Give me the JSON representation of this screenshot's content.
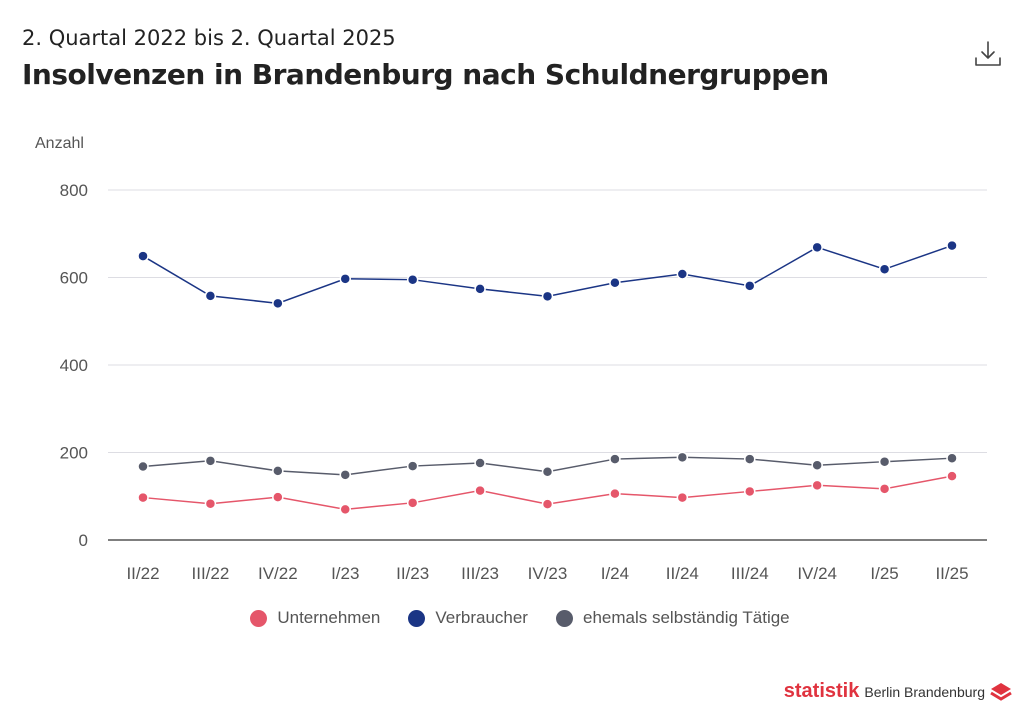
{
  "header": {
    "subtitle": "2. Quartal 2022 bis 2. Quartal 2025",
    "title": "Insolvenzen in Brandenburg nach Schuldnergruppen",
    "download_icon": "download-icon"
  },
  "chart_data": {
    "type": "line",
    "ylabel": "Anzahl",
    "ylim": [
      0,
      800
    ],
    "yticks": [
      0,
      200,
      400,
      600,
      800
    ],
    "grid": true,
    "legend_position": "bottom",
    "categories": [
      "II/22",
      "III/22",
      "IV/22",
      "I/23",
      "II/23",
      "III/23",
      "IV/23",
      "I/24",
      "II/24",
      "III/24",
      "IV/24",
      "I/25",
      "II/25"
    ],
    "series": [
      {
        "name": "Unternehmen",
        "color": "#e5566a",
        "values": [
          97,
          83,
          98,
          70,
          85,
          113,
          82,
          106,
          97,
          111,
          125,
          117,
          146
        ]
      },
      {
        "name": "Verbraucher",
        "color": "#1b3585",
        "values": [
          649,
          558,
          541,
          597,
          595,
          574,
          557,
          588,
          608,
          581,
          669,
          619,
          673
        ]
      },
      {
        "name": "ehemals selbständig Tätige",
        "color": "#585c6b",
        "values": [
          168,
          181,
          158,
          149,
          169,
          176,
          156,
          185,
          189,
          185,
          171,
          179,
          187
        ]
      }
    ]
  },
  "footer": {
    "logo_brand": "statistik",
    "logo_text": "Berlin Brandenburg",
    "logo_colors": {
      "brand": "#e0333f"
    }
  }
}
